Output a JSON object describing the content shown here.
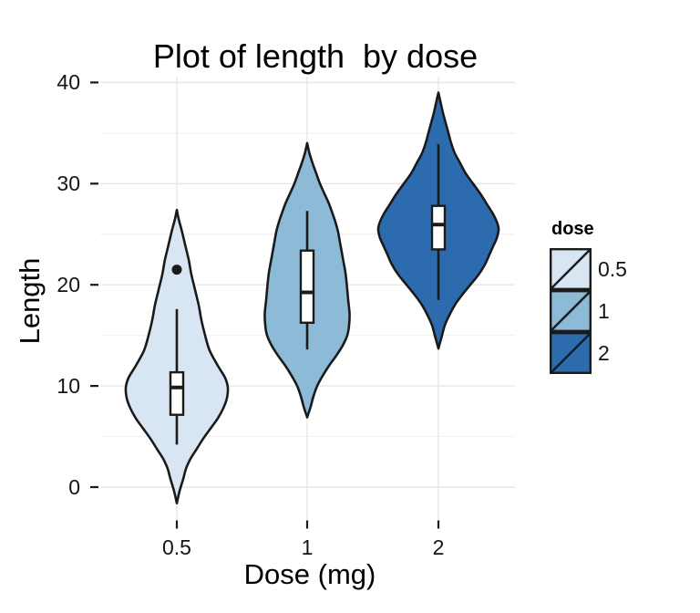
{
  "chart_data": {
    "type": "violin",
    "title": "Plot of length  by dose",
    "xlabel": "Dose (mg)",
    "ylabel": "Length",
    "categories": [
      "0.5",
      "1",
      "2"
    ],
    "y_ticks": [
      0,
      10,
      20,
      30,
      40
    ],
    "y_minor_gridlines": [
      5,
      15,
      25,
      35
    ],
    "ylim": [
      -3.5,
      41
    ],
    "grid": "on",
    "legend": {
      "title": "dose",
      "position": "right",
      "entries": [
        {
          "label": "0.5",
          "color": "#d8e5f2"
        },
        {
          "label": "1",
          "color": "#8cbad7"
        },
        {
          "label": "2",
          "color": "#2c6cae"
        }
      ]
    },
    "series": [
      {
        "dose": "0.5",
        "fill": "#d8e5f2",
        "boxplot": {
          "whisker_low": 4.2,
          "q1": 7.15,
          "median": 9.85,
          "q3": 11.35,
          "whisker_high": 17.6
        },
        "outliers": [
          21.5
        ],
        "violin_range": [
          -1.6,
          27.4
        ],
        "density_profile": [
          [
            27.4,
            0
          ],
          [
            26.5,
            2
          ],
          [
            25.5,
            5
          ],
          [
            24,
            9
          ],
          [
            22.5,
            13
          ],
          [
            21,
            16
          ],
          [
            19.5,
            20
          ],
          [
            18,
            24
          ],
          [
            16.5,
            27
          ],
          [
            15,
            31
          ],
          [
            13.5,
            36
          ],
          [
            12,
            45
          ],
          [
            10.8,
            53
          ],
          [
            9.8,
            56
          ],
          [
            8.8,
            55
          ],
          [
            7.8,
            51
          ],
          [
            6.8,
            45
          ],
          [
            5.8,
            37
          ],
          [
            4.8,
            29
          ],
          [
            3.8,
            22
          ],
          [
            2.8,
            15
          ],
          [
            1.8,
            10
          ],
          [
            0.8,
            7
          ],
          [
            -0.4,
            3
          ],
          [
            -1.6,
            0
          ]
        ]
      },
      {
        "dose": "1",
        "fill": "#8cbad7",
        "boxplot": {
          "whisker_low": 13.6,
          "q1": 16.25,
          "median": 19.25,
          "q3": 23.38,
          "whisker_high": 27.3
        },
        "outliers": [],
        "violin_range": [
          6.9,
          34.0
        ],
        "density_profile": [
          [
            34,
            0
          ],
          [
            33,
            2.5
          ],
          [
            32,
            6
          ],
          [
            31,
            10
          ],
          [
            30,
            14
          ],
          [
            29,
            19
          ],
          [
            28,
            24
          ],
          [
            27,
            28
          ],
          [
            26.2,
            31
          ],
          [
            25.2,
            34
          ],
          [
            24.2,
            36
          ],
          [
            23.2,
            38
          ],
          [
            22.2,
            40
          ],
          [
            21.2,
            42
          ],
          [
            20,
            43.5
          ],
          [
            18.5,
            45
          ],
          [
            17.2,
            46.5
          ],
          [
            16,
            46
          ],
          [
            15,
            44
          ],
          [
            14,
            39
          ],
          [
            13,
            32
          ],
          [
            12,
            24
          ],
          [
            11,
            17
          ],
          [
            10,
            11
          ],
          [
            9,
            7
          ],
          [
            8,
            4
          ],
          [
            7.3,
            1.5
          ],
          [
            6.9,
            0
          ]
        ]
      },
      {
        "dose": "2",
        "fill": "#2c6cae",
        "boxplot": {
          "whisker_low": 18.5,
          "q1": 23.5,
          "median": 25.95,
          "q3": 27.8,
          "whisker_high": 33.9
        },
        "outliers": [],
        "violin_range": [
          13.7,
          39.0
        ],
        "density_profile": [
          [
            39,
            0
          ],
          [
            38,
            2.5
          ],
          [
            37,
            5
          ],
          [
            36,
            8
          ],
          [
            35,
            11
          ],
          [
            34,
            14
          ],
          [
            33,
            18
          ],
          [
            32,
            24
          ],
          [
            31,
            30
          ],
          [
            30,
            38
          ],
          [
            29,
            46
          ],
          [
            28,
            53
          ],
          [
            27,
            60
          ],
          [
            26,
            65
          ],
          [
            25.4,
            66
          ],
          [
            24.6,
            64
          ],
          [
            23.8,
            60
          ],
          [
            23,
            56
          ],
          [
            22,
            51
          ],
          [
            21,
            44
          ],
          [
            20,
            35
          ],
          [
            19,
            26
          ],
          [
            18,
            18
          ],
          [
            17,
            12
          ],
          [
            16,
            7
          ],
          [
            15,
            4
          ],
          [
            14.2,
            1.5
          ],
          [
            13.7,
            0
          ]
        ]
      }
    ]
  }
}
